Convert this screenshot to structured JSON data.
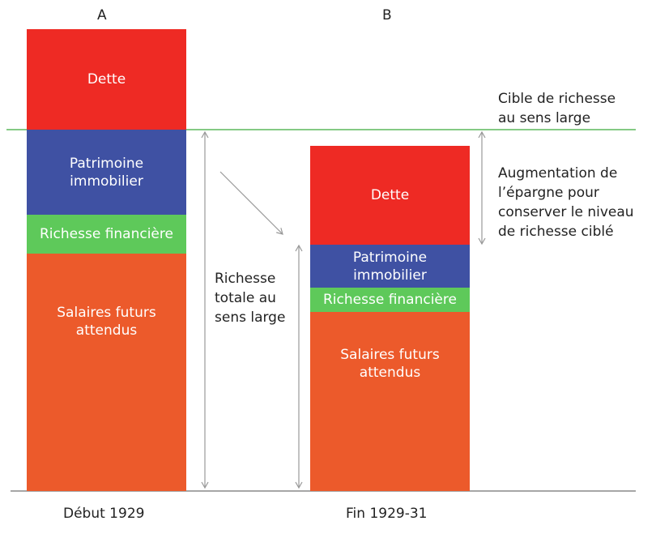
{
  "colors": {
    "dette": "#ee2a24",
    "patrimoine": "#3f51a3",
    "financiere": "#5ec95a",
    "salaires": "#ec5a2b",
    "target_line": "#5cb85c",
    "axis": "#888888"
  },
  "bars": [
    {
      "letter": "A",
      "label": "Début 1929",
      "segments": {
        "dette": "Dette",
        "patrimoine": "Patrimoine immobilier",
        "financiere": "Richesse financière",
        "salaires": "Salaires futurs attendus"
      }
    },
    {
      "letter": "B",
      "label": "Fin 1929-31",
      "segments": {
        "dette": "Dette",
        "patrimoine": "Patrimoine immobilier",
        "financiere": "Richesse financière",
        "salaires": "Salaires futurs attendus"
      }
    }
  ],
  "annotations": {
    "target": "Cible de richesse au sens large",
    "total": "Richesse totale au sens large",
    "saving": "Augmentation de l’épargne pour conserver le niveau de richesse ciblé"
  }
}
